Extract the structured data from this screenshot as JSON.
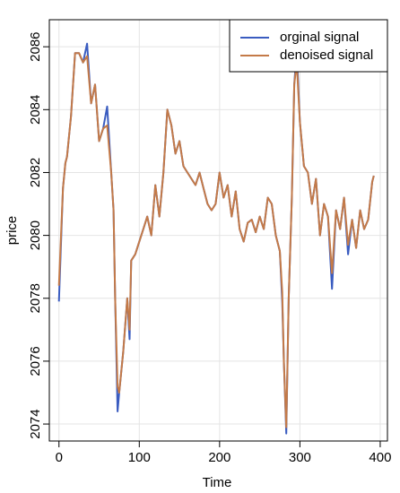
{
  "chart_data": {
    "type": "line",
    "xlabel": "Time",
    "ylabel": "price",
    "x": [
      0,
      5,
      8,
      10,
      15,
      20,
      25,
      30,
      35,
      40,
      45,
      50,
      55,
      60,
      65,
      68,
      70,
      73,
      75,
      80,
      85,
      88,
      90,
      95,
      100,
      105,
      110,
      115,
      120,
      125,
      130,
      135,
      140,
      145,
      150,
      155,
      160,
      165,
      170,
      175,
      180,
      185,
      190,
      195,
      200,
      205,
      210,
      215,
      220,
      225,
      230,
      235,
      240,
      245,
      250,
      255,
      260,
      265,
      270,
      275,
      278,
      280,
      283,
      286,
      290,
      293,
      296,
      300,
      305,
      310,
      315,
      320,
      325,
      330,
      335,
      340,
      345,
      350,
      355,
      360,
      365,
      370,
      375,
      380,
      385,
      390,
      392
    ],
    "series": [
      {
        "name": "orginal signal",
        "color": "#3a5cc0",
        "values": [
          2077.9,
          2081.5,
          2082.3,
          2082.5,
          2083.8,
          2085.8,
          2085.8,
          2085.5,
          2086.1,
          2084.2,
          2084.8,
          2083.0,
          2083.4,
          2084.1,
          2082.0,
          2080.8,
          2078.0,
          2074.4,
          2075.0,
          2076.3,
          2078.0,
          2076.7,
          2079.2,
          2079.4,
          2079.8,
          2080.2,
          2080.6,
          2080.0,
          2081.6,
          2080.6,
          2082.0,
          2084.0,
          2083.5,
          2082.6,
          2083.0,
          2082.2,
          2082.0,
          2081.8,
          2081.6,
          2082.0,
          2081.5,
          2081.0,
          2080.8,
          2081.0,
          2082.0,
          2081.2,
          2081.6,
          2080.6,
          2081.4,
          2080.2,
          2079.8,
          2080.4,
          2080.5,
          2080.1,
          2080.6,
          2080.2,
          2081.2,
          2081.0,
          2080.0,
          2079.5,
          2077.9,
          2076.0,
          2073.7,
          2078.0,
          2081.2,
          2084.8,
          2085.9,
          2083.6,
          2082.2,
          2082.0,
          2081.0,
          2081.8,
          2080.0,
          2081.0,
          2080.6,
          2078.3,
          2080.8,
          2080.2,
          2081.2,
          2079.4,
          2080.5,
          2079.6,
          2080.8,
          2080.2,
          2080.5,
          2081.7,
          2081.9
        ]
      },
      {
        "name": "denoised signal",
        "color": "#c47a48",
        "values": [
          2078.4,
          2081.5,
          2082.3,
          2082.5,
          2083.8,
          2085.8,
          2085.8,
          2085.5,
          2085.7,
          2084.2,
          2084.8,
          2083.0,
          2083.4,
          2083.5,
          2082.0,
          2080.8,
          2078.0,
          2075.2,
          2075.0,
          2076.3,
          2078.0,
          2077.0,
          2079.2,
          2079.4,
          2079.8,
          2080.2,
          2080.6,
          2080.0,
          2081.6,
          2080.6,
          2082.0,
          2084.0,
          2083.5,
          2082.6,
          2083.0,
          2082.2,
          2082.0,
          2081.8,
          2081.6,
          2082.0,
          2081.5,
          2081.0,
          2080.8,
          2081.0,
          2082.0,
          2081.2,
          2081.6,
          2080.6,
          2081.4,
          2080.2,
          2079.8,
          2080.4,
          2080.5,
          2080.1,
          2080.6,
          2080.2,
          2081.2,
          2081.0,
          2080.0,
          2079.5,
          2078.2,
          2076.0,
          2073.9,
          2078.0,
          2081.2,
          2084.8,
          2085.5,
          2083.6,
          2082.2,
          2082.0,
          2081.0,
          2081.8,
          2080.0,
          2081.0,
          2080.6,
          2078.8,
          2080.8,
          2080.2,
          2081.2,
          2079.7,
          2080.5,
          2079.6,
          2080.8,
          2080.2,
          2080.5,
          2081.7,
          2081.9
        ]
      }
    ],
    "xlim": [
      -12,
      409
    ],
    "xticks": [
      0,
      100,
      200,
      300,
      400
    ],
    "ylim": [
      2073.46,
      2086.86
    ],
    "yticks": [
      2074,
      2076,
      2078,
      2080,
      2082,
      2084,
      2086
    ],
    "grid": true,
    "legend": "top-right"
  }
}
